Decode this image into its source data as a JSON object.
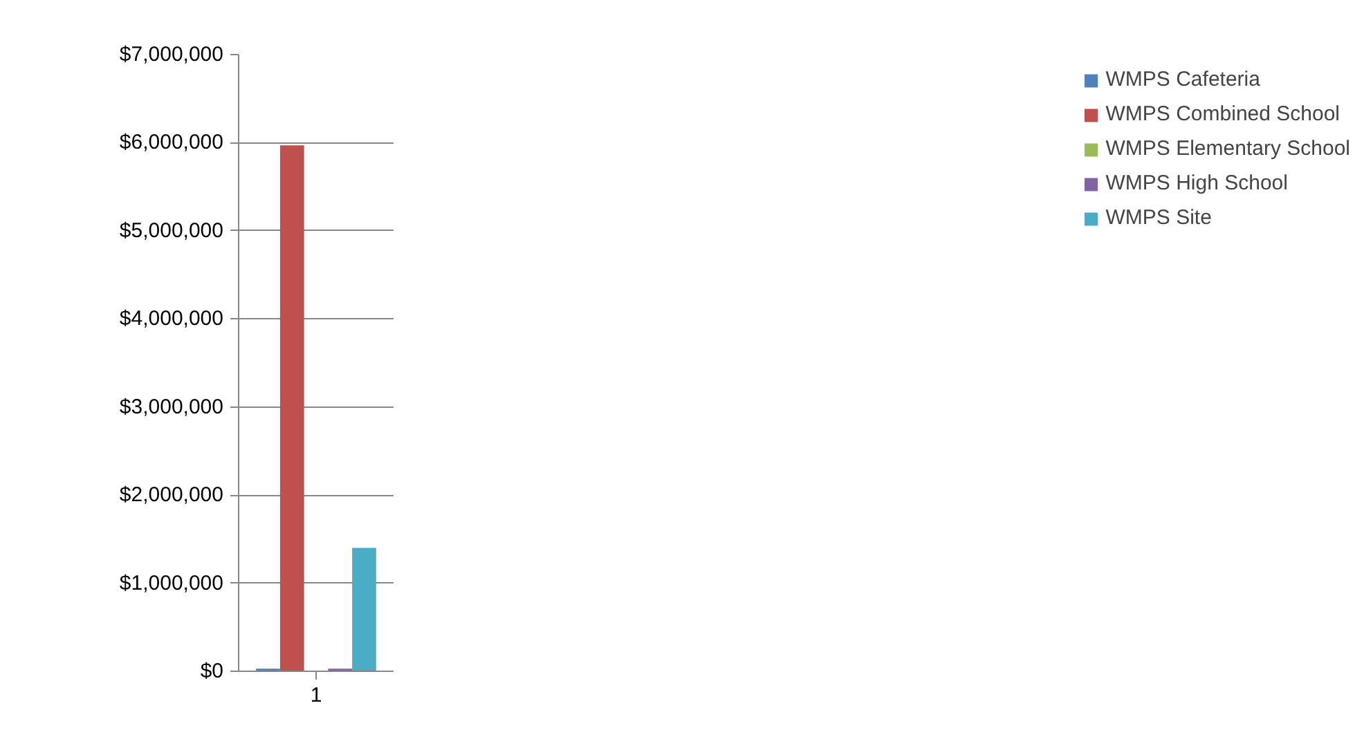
{
  "chart_data": {
    "type": "bar",
    "categories": [
      "1"
    ],
    "series": [
      {
        "name": "WMPS Cafeteria",
        "color": "#4f81bd",
        "values": [
          30000
        ]
      },
      {
        "name": "WMPS Combined School",
        "color": "#c0504d",
        "values": [
          5970000
        ]
      },
      {
        "name": "WMPS Elementary School",
        "color": "#9bbb59",
        "values": [
          0
        ]
      },
      {
        "name": "WMPS High School",
        "color": "#8064a2",
        "values": [
          30000
        ]
      },
      {
        "name": "WMPS Site",
        "color": "#4bacc6",
        "values": [
          1400000
        ]
      }
    ],
    "ylim": [
      0,
      7000000
    ],
    "yticks": [
      {
        "value": 0,
        "label": "$0"
      },
      {
        "value": 1000000,
        "label": "$1,000,000"
      },
      {
        "value": 2000000,
        "label": "$2,000,000"
      },
      {
        "value": 3000000,
        "label": "$3,000,000"
      },
      {
        "value": 4000000,
        "label": "$4,000,000"
      },
      {
        "value": 5000000,
        "label": "$5,000,000"
      },
      {
        "value": 6000000,
        "label": "$6,000,000"
      },
      {
        "value": 7000000,
        "label": "$7,000,000"
      }
    ],
    "grid": "y",
    "legend": "right"
  }
}
